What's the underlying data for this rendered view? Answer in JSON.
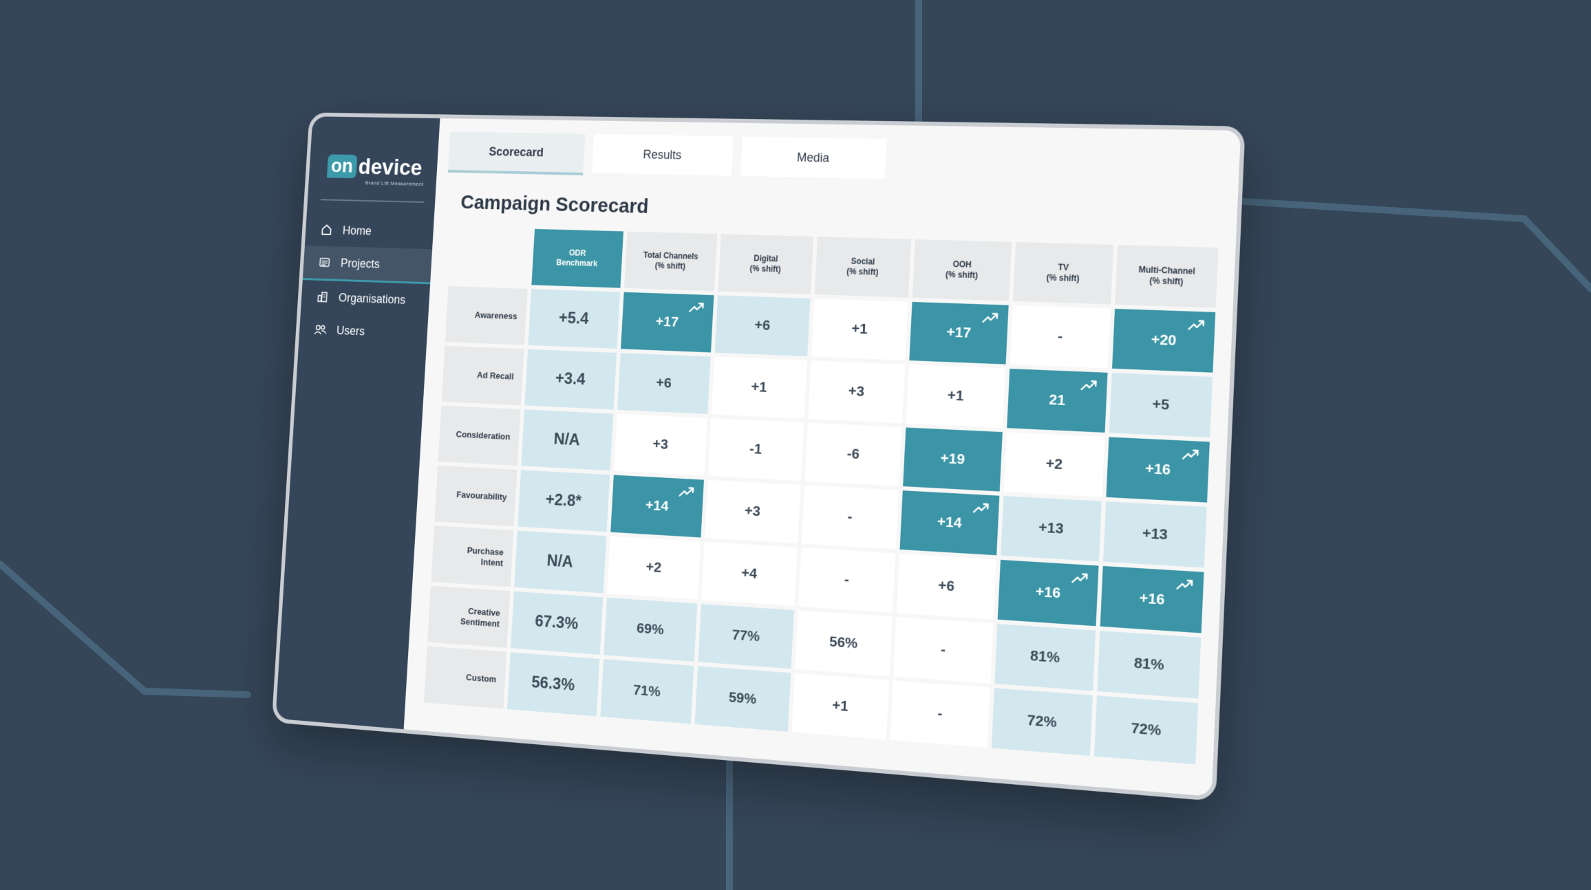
{
  "app": {
    "logo_on": "on",
    "logo_device": "device",
    "logo_sub": "Brand Lift Measurement"
  },
  "sidebar": {
    "items": [
      {
        "label": "Home",
        "icon": "home-icon",
        "active": false
      },
      {
        "label": "Projects",
        "icon": "projects-icon",
        "active": true
      },
      {
        "label": "Organisations",
        "icon": "organisations-icon",
        "active": false
      },
      {
        "label": "Users",
        "icon": "users-icon",
        "active": false
      }
    ]
  },
  "tabs": [
    {
      "label": "Scorecard",
      "active": true
    },
    {
      "label": "Results",
      "active": false
    },
    {
      "label": "Media",
      "active": false
    }
  ],
  "page_title": "Campaign Scorecard",
  "colors": {
    "accent": "#3b95a6",
    "light_cell": "#d3e8ee",
    "sidebar": "#35465a",
    "background": "#354659"
  },
  "scorecard": {
    "columns": [
      "ODR\nBenchmark",
      "Total Channels\n(% shift)",
      "Digital\n(% shift)",
      "Social\n(% shift)",
      "OOH\n(% shift)",
      "TV\n(% shift)",
      "Multi-Channel\n(% shift)"
    ],
    "rows": [
      {
        "label": "Awareness",
        "cells": [
          {
            "v": "+5.4",
            "s": "light"
          },
          {
            "v": "+17",
            "s": "dark",
            "trend": true
          },
          {
            "v": "+6",
            "s": "light"
          },
          {
            "v": "+1",
            "s": "white"
          },
          {
            "v": "+17",
            "s": "dark",
            "trend": true
          },
          {
            "v": "-",
            "s": "white"
          },
          {
            "v": "+20",
            "s": "dark",
            "trend": true
          }
        ]
      },
      {
        "label": "Ad Recall",
        "cells": [
          {
            "v": "+3.4",
            "s": "light"
          },
          {
            "v": "+6",
            "s": "light"
          },
          {
            "v": "+1",
            "s": "white"
          },
          {
            "v": "+3",
            "s": "white"
          },
          {
            "v": "+1",
            "s": "white"
          },
          {
            "v": "21",
            "s": "dark",
            "trend": true
          },
          {
            "v": "+5",
            "s": "light"
          }
        ]
      },
      {
        "label": "Consideration",
        "cells": [
          {
            "v": "N/A",
            "s": "light"
          },
          {
            "v": "+3",
            "s": "white"
          },
          {
            "v": "-1",
            "s": "white"
          },
          {
            "v": "-6",
            "s": "white"
          },
          {
            "v": "+19",
            "s": "dark"
          },
          {
            "v": "+2",
            "s": "white"
          },
          {
            "v": "+16",
            "s": "dark",
            "trend": true
          }
        ]
      },
      {
        "label": "Favourability",
        "cells": [
          {
            "v": "+2.8*",
            "s": "light"
          },
          {
            "v": "+14",
            "s": "dark",
            "trend": true
          },
          {
            "v": "+3",
            "s": "white"
          },
          {
            "v": "-",
            "s": "white"
          },
          {
            "v": "+14",
            "s": "dark",
            "trend": true
          },
          {
            "v": "+13",
            "s": "light"
          },
          {
            "v": "+13",
            "s": "light"
          }
        ]
      },
      {
        "label": "Purchase\nIntent",
        "cells": [
          {
            "v": "N/A",
            "s": "light"
          },
          {
            "v": "+2",
            "s": "white"
          },
          {
            "v": "+4",
            "s": "white"
          },
          {
            "v": "-",
            "s": "white"
          },
          {
            "v": "+6",
            "s": "white"
          },
          {
            "v": "+16",
            "s": "dark",
            "trend": true
          },
          {
            "v": "+16",
            "s": "dark",
            "trend": true
          }
        ]
      },
      {
        "label": "Creative\nSentiment",
        "cells": [
          {
            "v": "67.3%",
            "s": "light"
          },
          {
            "v": "69%",
            "s": "light"
          },
          {
            "v": "77%",
            "s": "light"
          },
          {
            "v": "56%",
            "s": "white"
          },
          {
            "v": "-",
            "s": "white"
          },
          {
            "v": "81%",
            "s": "light"
          },
          {
            "v": "81%",
            "s": "light"
          }
        ]
      },
      {
        "label": "Custom",
        "cells": [
          {
            "v": "56.3%",
            "s": "light"
          },
          {
            "v": "71%",
            "s": "light"
          },
          {
            "v": "59%",
            "s": "light"
          },
          {
            "v": "+1",
            "s": "white"
          },
          {
            "v": "-",
            "s": "white"
          },
          {
            "v": "72%",
            "s": "light"
          },
          {
            "v": "72%",
            "s": "light"
          }
        ]
      }
    ]
  }
}
